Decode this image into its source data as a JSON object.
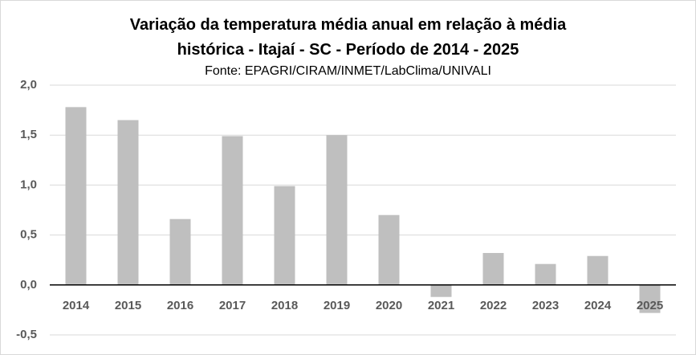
{
  "chart_data": {
    "type": "bar",
    "title": "Variação da temperatura média anual em relação à média histórica - Itajaí - SC - Período de 2014 - 2025",
    "subtitle": "Fonte: EPAGRI/CIRAM/INMET/LabClima/UNIVALI",
    "categories": [
      "2014",
      "2015",
      "2016",
      "2017",
      "2018",
      "2019",
      "2020",
      "2021",
      "2022",
      "2023",
      "2024",
      "2025"
    ],
    "values": [
      1.78,
      1.65,
      0.66,
      1.49,
      0.99,
      1.5,
      0.7,
      -0.12,
      0.32,
      0.21,
      0.29,
      -0.28
    ],
    "color": "#bfbfbf",
    "ylim": [
      -0.5,
      2.0
    ],
    "yticks": [
      {
        "value": -0.5,
        "label": "-0,5"
      },
      {
        "value": 0,
        "label": "0,0"
      },
      {
        "value": 0.5,
        "label": "0,5"
      },
      {
        "value": 1.0,
        "label": "1,0"
      },
      {
        "value": 1.5,
        "label": "1,5"
      },
      {
        "value": 2.0,
        "label": "2,0"
      }
    ],
    "grid": true
  }
}
